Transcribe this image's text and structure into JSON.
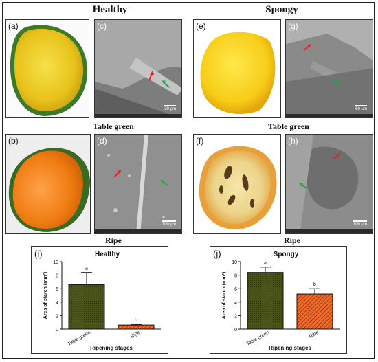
{
  "headings": {
    "healthy": "Healthy",
    "spongy": "Spongy",
    "table_green_left": "Table green",
    "table_green_right": "Table green",
    "ripe_left": "Ripe",
    "ripe_right": "Ripe"
  },
  "panels": {
    "a": "(a)",
    "b": "(b)",
    "c": "(c)",
    "d": "(d)",
    "e": "(e)",
    "f": "(f)",
    "g": "(g)",
    "h": "(h)",
    "i": "(i)",
    "j": "(j)"
  },
  "scale_bars": {
    "c": "20 µm",
    "g": "50 µm",
    "d": "100 µm",
    "h": "100 µm"
  },
  "colors": {
    "table_green_bar": "#4a5418",
    "ripe_bar": "#f06a2a",
    "ripe_hatch": "#7a2a10",
    "arrow_red": "#e8222a",
    "arrow_green": "#1fa84a"
  },
  "chart_data": [
    {
      "type": "bar",
      "panel": "(i)",
      "title": "Healthy",
      "categories": [
        "Table green",
        "Ripe"
      ],
      "values": [
        6.6,
        0.6
      ],
      "errors": [
        1.8,
        0.1
      ],
      "significance": [
        "a",
        "b"
      ],
      "xlabel": "Ripening stages",
      "ylabel": "Area of starch (mm²)",
      "ylim": [
        0,
        10
      ],
      "yticks": [
        "0",
        "2",
        "4",
        "6",
        "8",
        "10"
      ]
    },
    {
      "type": "bar",
      "panel": "(j)",
      "title": "Spongy",
      "categories": [
        "Table green",
        "Ripe"
      ],
      "values": [
        8.4,
        5.2
      ],
      "errors": [
        0.8,
        0.8
      ],
      "significance": [
        "a",
        "b"
      ],
      "xlabel": "Ripening stages",
      "ylabel": "Area of starch (mm²)",
      "ylim": [
        0,
        10
      ],
      "yticks": [
        "0",
        "2",
        "4",
        "6",
        "8",
        "10"
      ]
    }
  ]
}
